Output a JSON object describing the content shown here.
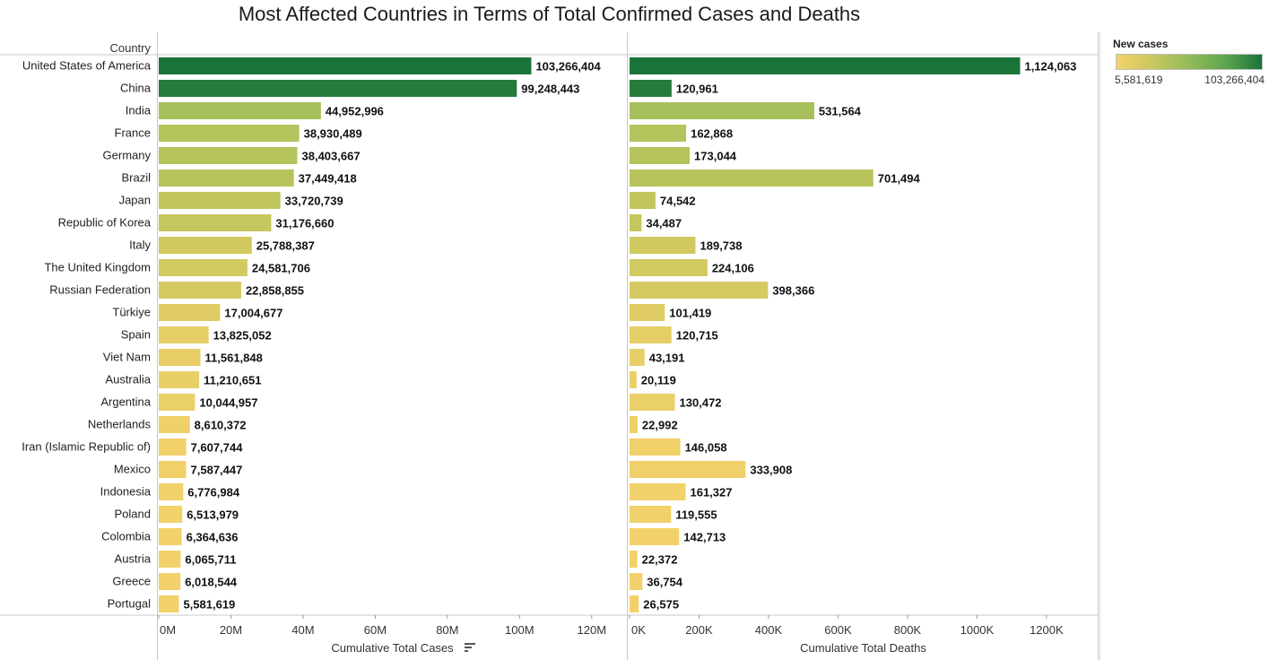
{
  "chart_data": {
    "type": "bar",
    "title": "Most Affected Countries in Terms of Total Confirmed Cases and Deaths",
    "row_header": "Country",
    "categories": [
      "United States of America",
      "China",
      "India",
      "France",
      "Germany",
      "Brazil",
      "Japan",
      "Republic of Korea",
      "Italy",
      "The United Kingdom",
      "Russian Federation",
      "Türkiye",
      "Spain",
      "Viet Nam",
      "Australia",
      "Argentina",
      "Netherlands",
      "Iran (Islamic Republic of)",
      "Mexico",
      "Indonesia",
      "Poland",
      "Colombia",
      "Austria",
      "Greece",
      "Portugal"
    ],
    "panels": [
      {
        "xlabel": "Cumulative Total Cases",
        "xlim": [
          0,
          130000000
        ],
        "ticks": [
          0,
          20000000,
          40000000,
          60000000,
          80000000,
          100000000,
          120000000
        ],
        "tick_labels": [
          "0M",
          "20M",
          "40M",
          "60M",
          "80M",
          "100M",
          "120M"
        ],
        "values": [
          103266404,
          99248443,
          44952996,
          38930489,
          38403667,
          37449418,
          33720739,
          31176660,
          25788387,
          24581706,
          22858855,
          17004677,
          13825052,
          11561848,
          11210651,
          10044957,
          8610372,
          7607744,
          7587447,
          6776984,
          6513979,
          6364636,
          6065711,
          6018544,
          5581619
        ],
        "value_labels": [
          "103,266,404",
          "99,248,443",
          "44,952,996",
          "38,930,489",
          "38,403,667",
          "37,449,418",
          "33,720,739",
          "31,176,660",
          "25,788,387",
          "24,581,706",
          "22,858,855",
          "17,004,677",
          "13,825,052",
          "11,561,848",
          "11,210,651",
          "10,044,957",
          "8,610,372",
          "7,607,744",
          "7,587,447",
          "6,776,984",
          "6,513,979",
          "6,364,636",
          "6,065,711",
          "6,018,544",
          "5,581,619"
        ],
        "sorted": true
      },
      {
        "xlabel": "Cumulative Total Deaths",
        "xlim": [
          0,
          1350000
        ],
        "ticks": [
          0,
          200000,
          400000,
          600000,
          800000,
          1000000,
          1200000
        ],
        "tick_labels": [
          "0K",
          "200K",
          "400K",
          "600K",
          "800K",
          "1000K",
          "1200K"
        ],
        "values": [
          1124063,
          120961,
          531564,
          162868,
          173044,
          701494,
          74542,
          34487,
          189738,
          224106,
          398366,
          101419,
          120715,
          43191,
          20119,
          130472,
          22992,
          146058,
          333908,
          161327,
          119555,
          142713,
          22372,
          36754,
          26575
        ],
        "value_labels": [
          "1,124,063",
          "120,961",
          "531,564",
          "162,868",
          "173,044",
          "701,494",
          "74,542",
          "34,487",
          "189,738",
          "224,106",
          "398,366",
          "101,419",
          "120,715",
          "43,191",
          "20,119",
          "130,472",
          "22,992",
          "146,058",
          "333,908",
          "161,327",
          "119,555",
          "142,713",
          "22,372",
          "36,754",
          "26,575"
        ]
      }
    ],
    "color_legend": {
      "title": "New cases",
      "min_label": "5,581,619",
      "max_label": "103,266,404",
      "min": 5581619,
      "max": 103266404,
      "stops": [
        "#f3d16a",
        "#c9c75e",
        "#93bb59",
        "#5ea54e",
        "#1a7339"
      ]
    }
  }
}
